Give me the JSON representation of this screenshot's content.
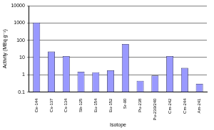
{
  "chart_data": {
    "type": "bar",
    "x_label": "Isotope",
    "y_label": "Activity (MBq g⁻¹)",
    "categories": [
      "Ce-144",
      "Cs-137",
      "Cs-134",
      "Sb-125",
      "Eu-154",
      "Eu-152",
      "Sr-90",
      "Pu-238",
      "Pu-239/240",
      "Cm-242",
      "Cm-244",
      "Am-241"
    ],
    "values": [
      1050,
      22,
      12,
      1.5,
      1.4,
      1.8,
      60,
      0.45,
      0.9,
      12,
      2.5,
      0.3
    ],
    "color": "#9999ff",
    "log": "y",
    "ylim": [
      0.1,
      10000
    ],
    "yticks": [
      0.1,
      1,
      10,
      100,
      1000,
      10000
    ],
    "grid": true
  }
}
